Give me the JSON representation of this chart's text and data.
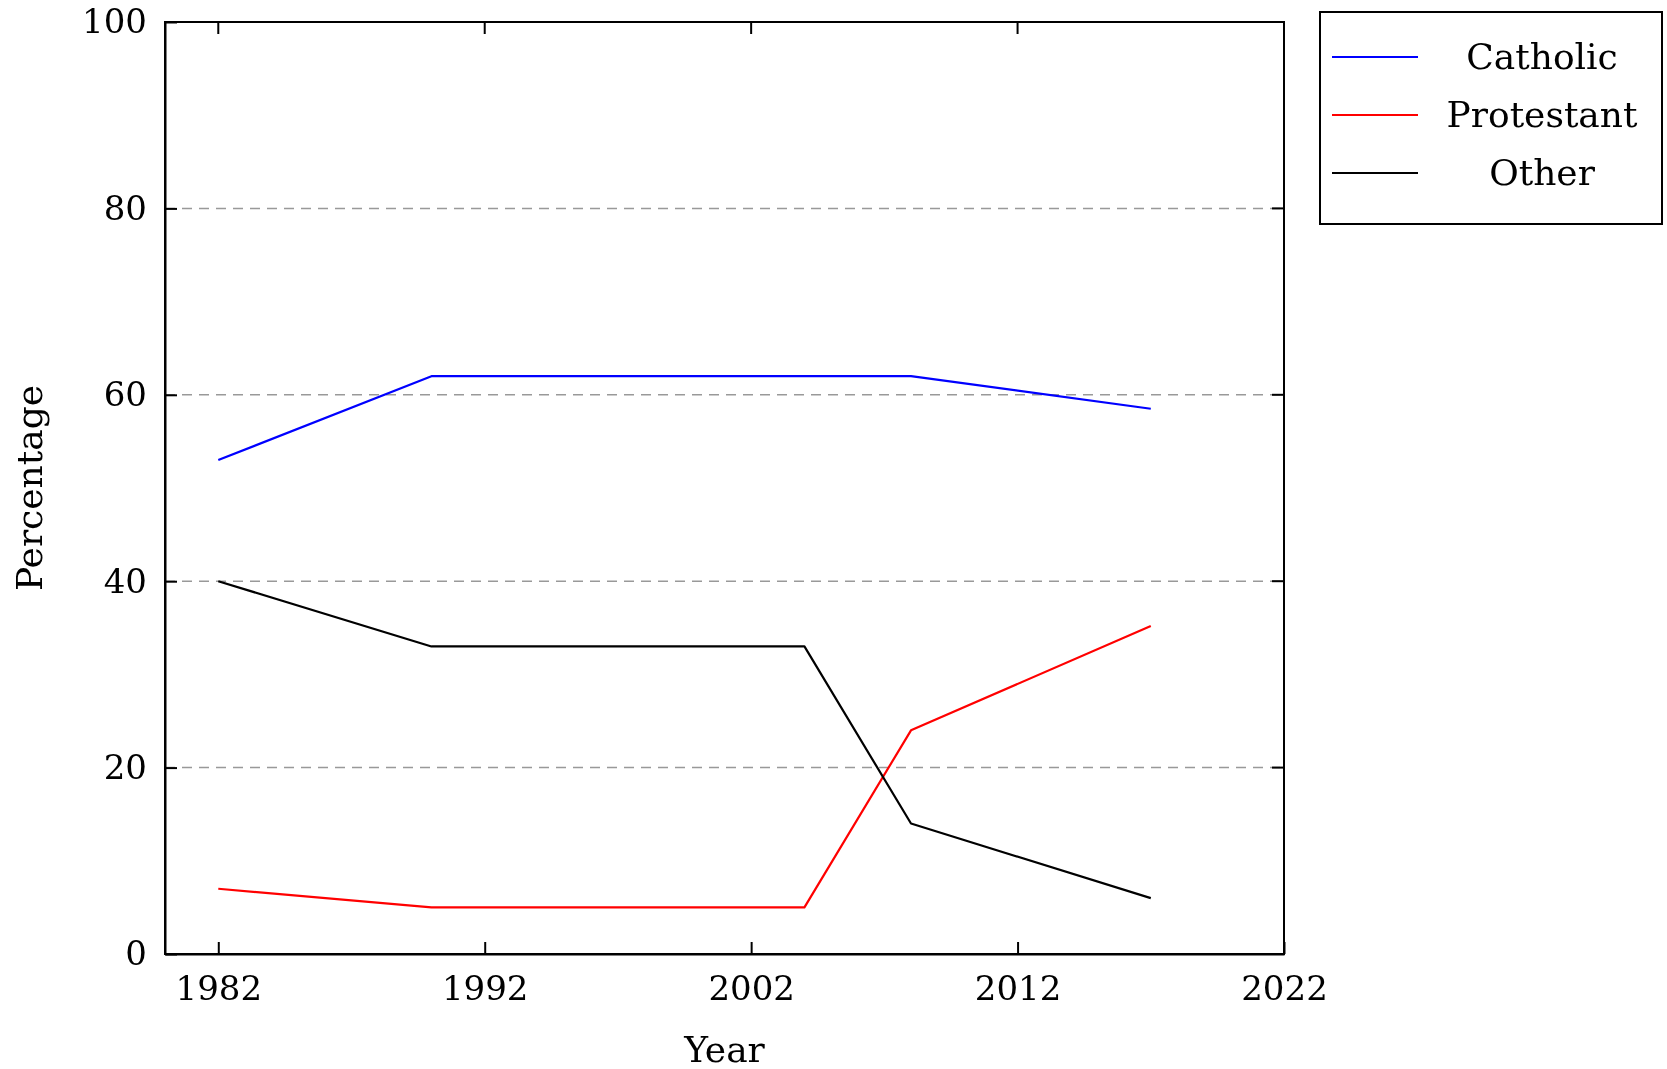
{
  "chart_data": {
    "type": "line",
    "xlabel": "Year",
    "ylabel": "Percentage",
    "x": [
      1982,
      1990,
      2004,
      2008,
      2017
    ],
    "series": [
      {
        "name": "Catholic",
        "color": "#0000ff",
        "values": [
          53,
          62,
          62,
          62,
          58.5
        ]
      },
      {
        "name": "Protestant",
        "color": "#ff0000",
        "values": [
          7,
          5,
          5,
          24,
          35.2
        ]
      },
      {
        "name": "Other",
        "color": "#000000",
        "values": [
          40,
          33,
          33,
          14,
          6
        ]
      }
    ],
    "xlim": [
      1980,
      2022
    ],
    "xticks": [
      1982,
      1992,
      2002,
      2012,
      2022
    ],
    "ylim": [
      0,
      100
    ],
    "yticks": [
      0,
      20,
      40,
      60,
      80,
      100
    ],
    "grid": "y",
    "legend": "top right",
    "line_style": "solid",
    "marker": "none"
  }
}
